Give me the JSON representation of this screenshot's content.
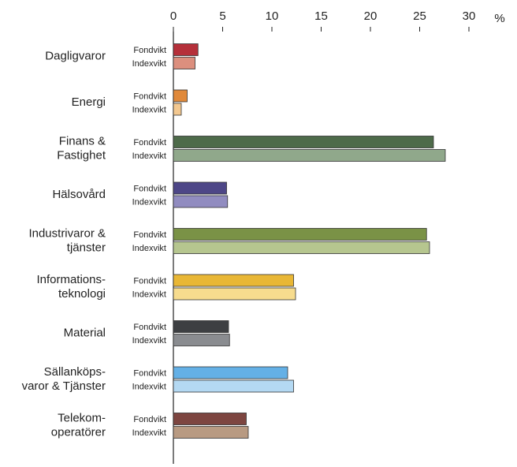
{
  "chart_data": {
    "type": "bar",
    "orientation": "horizontal",
    "unit": "%",
    "xlim": [
      0,
      30
    ],
    "x_ticks": [
      "0",
      "5",
      "10",
      "15",
      "20",
      "25",
      "30"
    ],
    "grid": false,
    "series_labels": [
      "Fondvikt",
      "Indexvikt"
    ],
    "categories": [
      {
        "lines": [
          "Dagligvaror"
        ],
        "values": [
          2.5,
          2.2
        ],
        "colors": [
          "#b5303a",
          "#dc8f7e"
        ]
      },
      {
        "lines": [
          "Energi"
        ],
        "values": [
          1.4,
          0.8
        ],
        "colors": [
          "#e0893a",
          "#f3c890"
        ]
      },
      {
        "lines": [
          "Finans &",
          "Fastighet"
        ],
        "values": [
          26.4,
          27.6
        ],
        "colors": [
          "#4e6b4a",
          "#90a88b"
        ]
      },
      {
        "lines": [
          "Hälsovård"
        ],
        "values": [
          5.4,
          5.5
        ],
        "colors": [
          "#4d4687",
          "#918cc0"
        ]
      },
      {
        "lines": [
          "Industrivaror &",
          "tjänster"
        ],
        "values": [
          25.7,
          26.0
        ],
        "colors": [
          "#7a9246",
          "#b6c68f"
        ]
      },
      {
        "lines": [
          "Informations-",
          "teknologi"
        ],
        "values": [
          12.2,
          12.4
        ],
        "colors": [
          "#e9b735",
          "#f7dc8e"
        ]
      },
      {
        "lines": [
          "Material"
        ],
        "values": [
          5.6,
          5.7
        ],
        "colors": [
          "#3d3f42",
          "#8a8c90"
        ]
      },
      {
        "lines": [
          "Sällanköps-",
          "varor & Tjänster"
        ],
        "values": [
          11.6,
          12.2
        ],
        "colors": [
          "#64b0e6",
          "#b4d9f3"
        ]
      },
      {
        "lines": [
          "Telekom-",
          "operatörer"
        ],
        "values": [
          7.4,
          7.6
        ],
        "colors": [
          "#7d4540",
          "#b89a82"
        ]
      }
    ]
  }
}
